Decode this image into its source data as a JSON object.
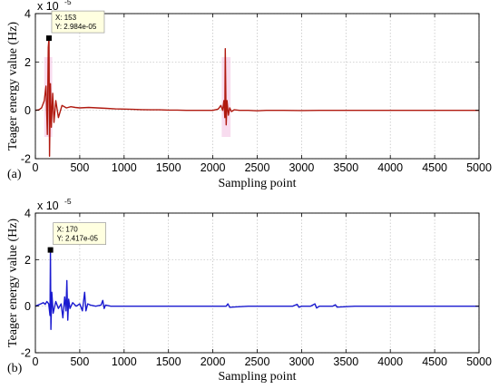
{
  "chart_data": [
    {
      "type": "line",
      "panel_label": "(a)",
      "xlabel": "Sampling point",
      "ylabel": "Teager energy value (Hz)",
      "y_exponent_label": "x 10",
      "y_exponent_power": "-5",
      "xlim": [
        0,
        5000
      ],
      "ylim": [
        -2,
        4
      ],
      "x_ticks": [
        "0",
        "500",
        "1000",
        "1500",
        "2000",
        "2500",
        "3000",
        "3500",
        "4000",
        "4500",
        "5000"
      ],
      "y_ticks": [
        "-2",
        "0",
        "2",
        "4"
      ],
      "grid": true,
      "line_color": "#b01a10",
      "highlight_color": "#f3c4e4",
      "datatip": {
        "x_text": "X: 153",
        "y_text": "Y: 2.984e-05",
        "x": 153,
        "y": 2.984
      },
      "series": [
        {
          "x": [
            0,
            40,
            70,
            100,
            120,
            135,
            145,
            153,
            160,
            170,
            180,
            195,
            210,
            230,
            260,
            300,
            350,
            400,
            450,
            500,
            600,
            700,
            800,
            900,
            1000,
            1100,
            1200,
            1300,
            1400,
            1500,
            1600,
            1700,
            1800,
            1900,
            2000,
            2060,
            2090,
            2110,
            2125,
            2135,
            2140,
            2150,
            2160,
            2175,
            2190,
            2210,
            2240,
            2300,
            2400,
            2500,
            2600,
            2800,
            3000,
            3200,
            3400,
            3600,
            3800,
            4000,
            4200,
            4400,
            4600,
            4800,
            5000
          ],
          "y": [
            0,
            0.02,
            0.1,
            0.4,
            1.0,
            -1.0,
            2.6,
            2.984,
            -1.9,
            1.1,
            -0.7,
            0.7,
            -0.5,
            0.4,
            -0.3,
            0.2,
            0.1,
            0.15,
            0.12,
            0.1,
            0.12,
            0.1,
            0.08,
            0.06,
            0.05,
            0.04,
            0.03,
            0.02,
            0.02,
            0.01,
            0.01,
            0.0,
            0.0,
            0.0,
            0.0,
            0.05,
            0.2,
            0.0,
            0.4,
            -0.3,
            2.55,
            -0.6,
            0.4,
            -0.2,
            0.1,
            -0.05,
            0.02,
            0.0,
            0.0,
            -0.02,
            0.0,
            0.0,
            -0.01,
            0.0,
            0.0,
            0.0,
            0.0,
            0.0,
            0.0,
            0.0,
            0.0,
            0.0,
            0.0
          ]
        }
      ]
    },
    {
      "type": "line",
      "panel_label": "(b)",
      "xlabel": "Sampling point",
      "ylabel": "Teager energy value (Hz)",
      "y_exponent_label": "x 10",
      "y_exponent_power": "-5",
      "xlim": [
        0,
        5000
      ],
      "ylim": [
        -2,
        4
      ],
      "x_ticks": [
        "0",
        "500",
        "1000",
        "1500",
        "2000",
        "2500",
        "3000",
        "3500",
        "4000",
        "4500",
        "5000"
      ],
      "y_ticks": [
        "-2",
        "0",
        "2",
        "4"
      ],
      "grid": true,
      "line_color": "#1a1ad0",
      "datatip": {
        "x_text": "X: 170",
        "y_text": "Y: 2.417e-05",
        "x": 170,
        "y": 2.417
      },
      "series": [
        {
          "x": [
            0,
            30,
            60,
            90,
            110,
            130,
            150,
            165,
            170,
            175,
            185,
            200,
            230,
            260,
            290,
            310,
            330,
            345,
            355,
            365,
            375,
            390,
            420,
            460,
            500,
            530,
            555,
            570,
            590,
            620,
            680,
            740,
            760,
            775,
            790,
            850,
            1000,
            1200,
            1400,
            1600,
            1800,
            2000,
            2150,
            2170,
            2190,
            2400,
            2700,
            2900,
            2950,
            2970,
            3000,
            3100,
            3150,
            3170,
            3200,
            3350,
            3380,
            3400,
            3600,
            3800,
            4000,
            4200,
            4400,
            4600,
            4800,
            5000
          ],
          "y": [
            0,
            0.05,
            0.1,
            0.15,
            0.08,
            0.2,
            0.1,
            -0.4,
            2.417,
            -1.0,
            0.6,
            -0.3,
            0.2,
            -0.1,
            0.1,
            -0.5,
            0.4,
            -0.2,
            1.1,
            -0.6,
            0.3,
            -0.1,
            0.15,
            0.0,
            0.1,
            -0.2,
            0.6,
            -0.2,
            0.1,
            0.05,
            0.0,
            0.05,
            0.25,
            -0.1,
            0.05,
            0.0,
            0.0,
            0.0,
            0.0,
            0.0,
            0.0,
            0.0,
            0.0,
            0.1,
            -0.05,
            0.0,
            0.0,
            0.0,
            0.08,
            -0.05,
            0.0,
            0.0,
            0.1,
            -0.08,
            0.0,
            0.0,
            0.06,
            -0.04,
            0.0,
            0.0,
            0.0,
            0.0,
            0.0,
            0.0,
            0.0,
            0.0
          ]
        }
      ]
    }
  ]
}
